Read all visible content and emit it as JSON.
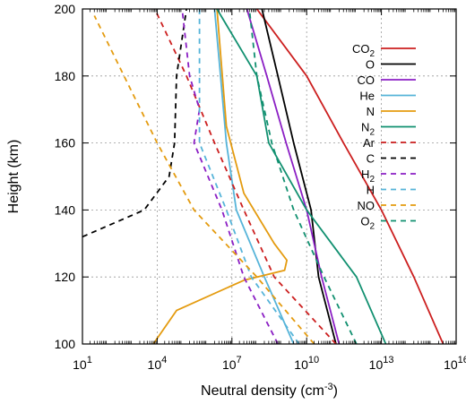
{
  "chart_data": {
    "type": "line",
    "xlabel": "Neutral density (cm",
    "xlabel_sup": "-3",
    "xlabel_end": ")",
    "ylabel": "Height (km)",
    "xscale": "log",
    "xlim": [
      10,
      1e+16
    ],
    "ylim": [
      100,
      200
    ],
    "grid": true,
    "legend_position": "top-right",
    "x_ticks": [
      {
        "value": 10,
        "base": "10",
        "exp": "1"
      },
      {
        "value": 10000,
        "base": "10",
        "exp": "4"
      },
      {
        "value": 10000000,
        "base": "10",
        "exp": "7"
      },
      {
        "value": 10000000000,
        "base": "10",
        "exp": "10"
      },
      {
        "value": 10000000000000,
        "base": "10",
        "exp": "13"
      },
      {
        "value": 10000000000000000,
        "base": "10",
        "exp": "16"
      }
    ],
    "y_ticks": [
      100,
      120,
      140,
      160,
      180,
      200
    ],
    "series": [
      {
        "name": "CO",
        "sub": "2",
        "color": "#cc1f1f",
        "dash": false,
        "points": [
          [
            3000000000000000.0,
            100
          ],
          [
            200000000000000.0,
            120
          ],
          [
            10000000000000.0,
            140
          ],
          [
            300000000000.0,
            160
          ],
          [
            10000000000.0,
            180
          ],
          [
            100000000.0,
            200
          ]
        ]
      },
      {
        "name": "O",
        "sub": "",
        "color": "#000000",
        "dash": false,
        "points": [
          [
            150000000000.0,
            100
          ],
          [
            30000000000.0,
            120
          ],
          [
            15000000000.0,
            140
          ],
          [
            3000000000.0,
            160
          ],
          [
            700000000.0,
            180
          ],
          [
            160000000.0,
            200
          ]
        ]
      },
      {
        "name": "CO",
        "sub": "",
        "color": "#8b1fc4",
        "dash": false,
        "points": [
          [
            200000000000.0,
            100
          ],
          [
            40000000000.0,
            120
          ],
          [
            10000000000.0,
            140
          ],
          [
            1500000000.0,
            160
          ],
          [
            250000000.0,
            180
          ],
          [
            40000000.0,
            200
          ]
        ]
      },
      {
        "name": "He",
        "sub": "",
        "color": "#56b4d9",
        "dash": false,
        "points": [
          [
            3000000000.0,
            100
          ],
          [
            200000000.0,
            120
          ],
          [
            15000000.0,
            140
          ],
          [
            6000000.0,
            160
          ],
          [
            3500000.0,
            180
          ],
          [
            2000000.0,
            200
          ]
        ]
      },
      {
        "name": "N",
        "sub": "",
        "color": "#e49b0f",
        "dash": false,
        "points": [
          [
            7000.0,
            100
          ],
          [
            60000.0,
            110
          ],
          [
            30000000.0,
            119
          ],
          [
            1300000000.0,
            122
          ],
          [
            1600000000.0,
            125
          ],
          [
            500000000.0,
            130
          ],
          [
            30000000.0,
            145
          ],
          [
            6000000.0,
            165
          ],
          [
            2500000.0,
            200
          ]
        ]
      },
      {
        "name": "N",
        "sub": "2",
        "color": "#119070",
        "dash": false,
        "points": [
          [
            15000000000000.0,
            100
          ],
          [
            1000000000000.0,
            120
          ],
          [
            10000000000.0,
            140
          ],
          [
            300000000.0,
            160
          ],
          [
            100000000.0,
            180
          ],
          [
            2500000.0,
            200
          ]
        ]
      },
      {
        "name": "Ar",
        "sub": "",
        "color": "#cc1f1f",
        "dash": true,
        "points": [
          [
            150000000000.0,
            100
          ],
          [
            500000000.0,
            120
          ],
          [
            30000000.0,
            140
          ],
          [
            2000000.0,
            160
          ],
          [
            150000.0,
            180
          ],
          [
            8000.0,
            200
          ]
        ]
      },
      {
        "name": "C",
        "sub": "",
        "color": "#000000",
        "dash": true,
        "points": [
          [
            10,
            132
          ],
          [
            3000.0,
            140
          ],
          [
            30000.0,
            150
          ],
          [
            50000.0,
            160
          ],
          [
            60000.0,
            180
          ],
          [
            150000.0,
            200
          ]
        ]
      },
      {
        "name": "H",
        "sub": "2",
        "color": "#8b1fc4",
        "dash": true,
        "points": [
          [
            700000000.0,
            100
          ],
          [
            30000000.0,
            120
          ],
          [
            4000000.0,
            140
          ],
          [
            300000.0,
            160
          ],
          [
            500000.0,
            170
          ],
          [
            200000.0,
            180
          ],
          [
            100000.0,
            200
          ]
        ]
      },
      {
        "name": "H",
        "sub": "",
        "color": "#56b4d9",
        "dash": true,
        "points": [
          [
            5000000000.0,
            100
          ],
          [
            60000000.0,
            120
          ],
          [
            6000000.0,
            140
          ],
          [
            500000.0,
            160
          ],
          [
            500000.0,
            180
          ],
          [
            500000.0,
            200
          ]
        ]
      },
      {
        "name": "NO",
        "sub": "",
        "color": "#e49b0f",
        "dash": true,
        "points": [
          [
            20000000000.0,
            100
          ],
          [
            100000000.0,
            120
          ],
          [
            300000.0,
            140
          ],
          [
            10000.0,
            160
          ],
          [
            1000.0,
            175
          ],
          [
            30,
            198
          ]
        ]
      },
      {
        "name": "O",
        "sub": "2",
        "color": "#119070",
        "dash": true,
        "points": [
          [
            1000000000000.0,
            100
          ],
          [
            50000000000.0,
            120
          ],
          [
            3000000000.0,
            140
          ],
          [
            400000000.0,
            160
          ],
          [
            100000000.0,
            180
          ],
          [
            50000000.0,
            200
          ]
        ]
      }
    ]
  }
}
